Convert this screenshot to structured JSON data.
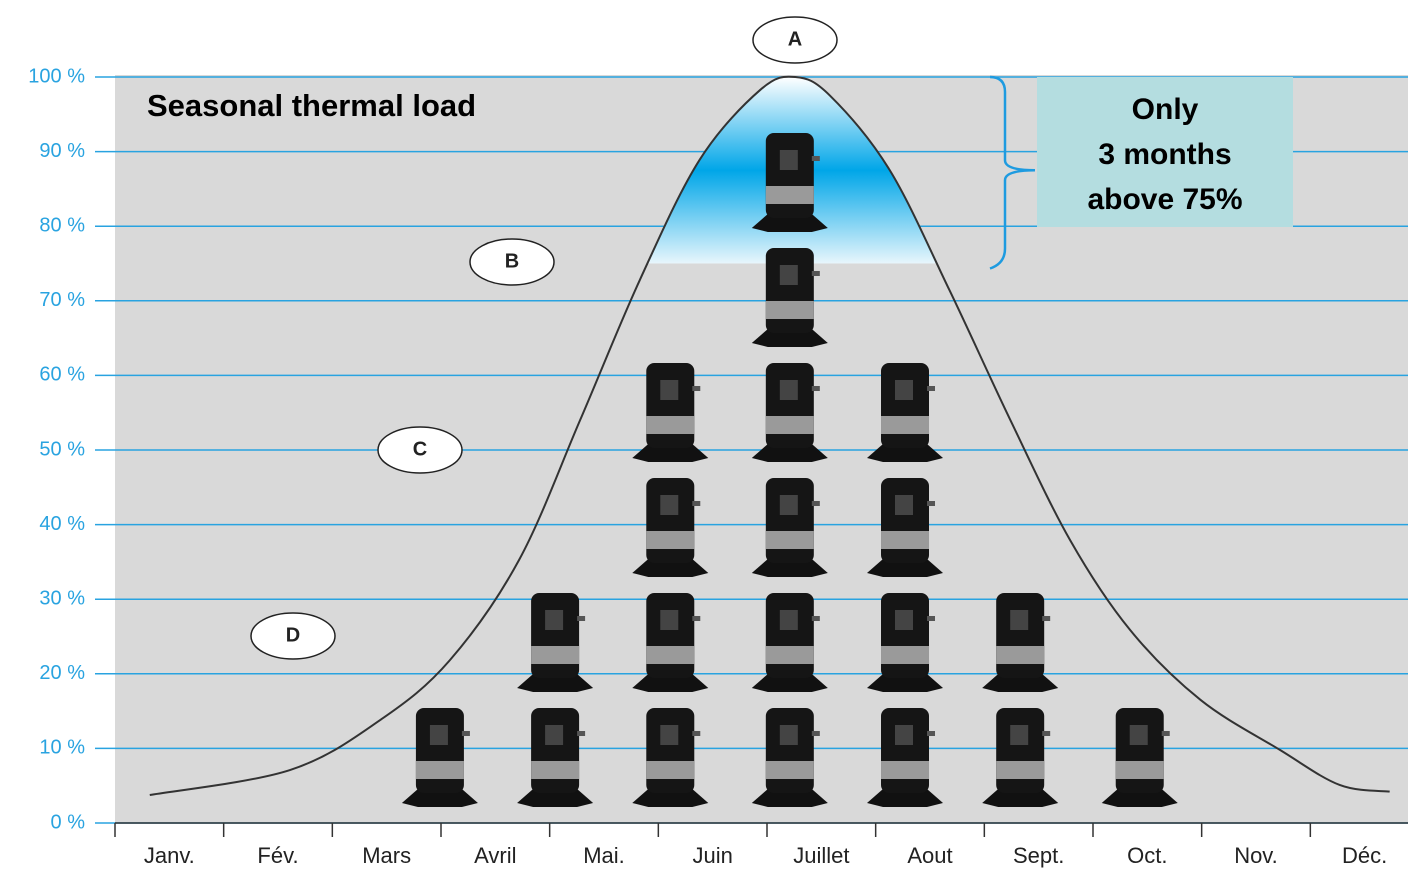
{
  "chart_data": {
    "type": "line",
    "title": "Seasonal thermal load",
    "categories": [
      "Janv.",
      "Fév.",
      "Mars",
      "Avril",
      "Mai.",
      "Juin",
      "Juillet",
      "Aout",
      "Sept.",
      "Oct.",
      "Nov.",
      "Déc."
    ],
    "xlim": [
      0,
      12
    ],
    "ylim": [
      0,
      100
    ],
    "yticks": [
      {
        "value": 0,
        "label": "0 %"
      },
      {
        "value": 10,
        "label": "10 %"
      },
      {
        "value": 20,
        "label": "20 %"
      },
      {
        "value": 30,
        "label": "30 %"
      },
      {
        "value": 40,
        "label": "40 %"
      },
      {
        "value": 50,
        "label": "50 %"
      },
      {
        "value": 60,
        "label": "60 %"
      },
      {
        "value": 70,
        "label": "70 %"
      },
      {
        "value": 80,
        "label": "80 %"
      },
      {
        "value": 90,
        "label": "90 %"
      },
      {
        "value": 100,
        "label": "100 %"
      }
    ],
    "grid": true,
    "series": [
      {
        "color": "#333333",
        "x": [
          0.32,
          1.61,
          2.44,
          3.08,
          3.72,
          4.28,
          4.83,
          5.38,
          5.94,
          6.26,
          6.58,
          7.13,
          7.68,
          8.24,
          8.79,
          9.34,
          9.99,
          10.72,
          11.27,
          11.73
        ],
        "values": [
          3.75,
          7.1,
          13.8,
          21.8,
          35.3,
          54,
          72.8,
          88.9,
          98.3,
          100,
          97.5,
          87.5,
          71.4,
          54,
          37.9,
          25.9,
          16.5,
          9.8,
          5.1,
          4.2
        ]
      }
    ],
    "highlight_threshold": 75,
    "compressors": {
      "x": [
        2.99,
        4.05,
        5.11,
        6.21,
        7.27,
        8.33,
        9.43
      ],
      "counts": [
        1,
        2,
        4,
        6,
        4,
        2,
        1
      ]
    },
    "annotation_lines": [
      "Only",
      "3 months",
      "above 75%"
    ],
    "markers": [
      "A",
      "B",
      "C",
      "D"
    ]
  }
}
